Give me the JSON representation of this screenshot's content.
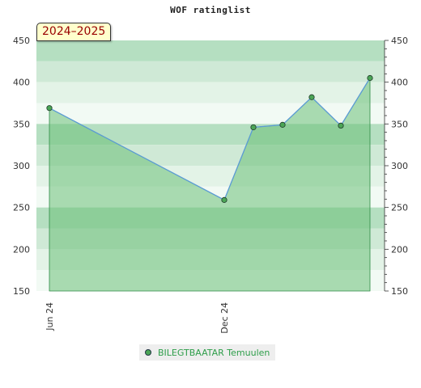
{
  "chart_data": {
    "type": "area",
    "title": "WOF ratinglist",
    "badge": "2024–2025",
    "x_tick_labels": [
      "Jun 24",
      "Dec 24"
    ],
    "ylim": [
      150,
      450
    ],
    "y_ticks": [
      150,
      200,
      250,
      300,
      350,
      400,
      450
    ],
    "series": [
      {
        "name": "BILEGTBAATAR Temuulen",
        "points": [
          {
            "x": "2024-06",
            "y": 369
          },
          {
            "x": "2024-12",
            "y": 259
          },
          {
            "x": "2025-01",
            "y": 346
          },
          {
            "x": "2025-02",
            "y": 349
          },
          {
            "x": "2025-03",
            "y": 382
          },
          {
            "x": "2025-04",
            "y": 348
          },
          {
            "x": "2025-05",
            "y": 405
          }
        ]
      }
    ],
    "grid": true,
    "legend_position": "bottom",
    "colors": {
      "line": "#5b9bd5",
      "fill": "#6cbf79",
      "marker": "#4ba556",
      "legend_text": "#2e9e4a",
      "badge_text": "#990000"
    }
  }
}
